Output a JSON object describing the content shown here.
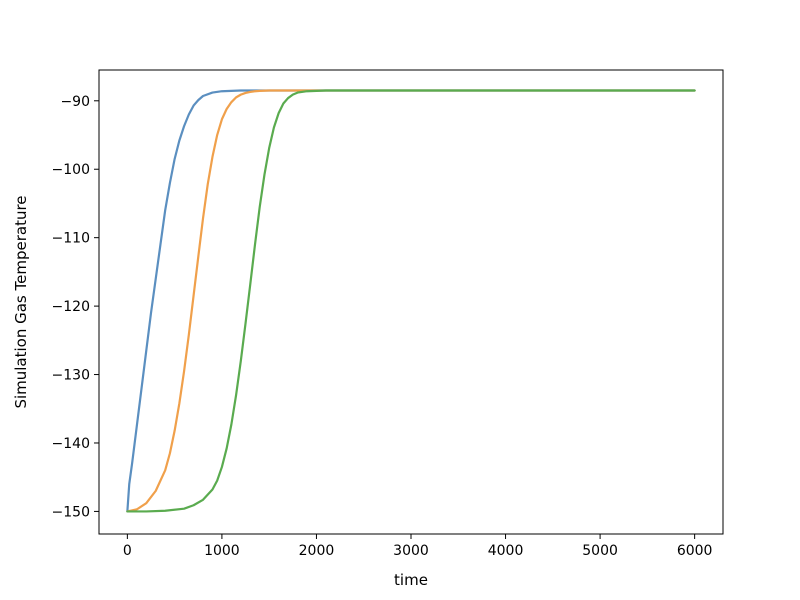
{
  "chart_data": {
    "type": "line",
    "title": "",
    "xlabel": "time",
    "ylabel": "Simulation Gas Temperature",
    "xlim": [
      -300,
      6300
    ],
    "ylim": [
      -153.3,
      -85.5
    ],
    "xticks": [
      0,
      1000,
      2000,
      3000,
      4000,
      5000,
      6000
    ],
    "xtick_labels": [
      "0",
      "1000",
      "2000",
      "3000",
      "4000",
      "5000",
      "6000"
    ],
    "yticks": [
      -150,
      -140,
      -130,
      -120,
      -110,
      -100,
      -90
    ],
    "ytick_labels": [
      "−150",
      "−140",
      "−130",
      "−120",
      "−110",
      "−100",
      "−90"
    ],
    "grid": false,
    "legend": "none",
    "series": [
      {
        "color": "#5b8fc0",
        "x": [
          0,
          20,
          50,
          100,
          150,
          200,
          250,
          300,
          350,
          400,
          450,
          500,
          550,
          600,
          650,
          700,
          750,
          800,
          900,
          1000,
          1200,
          1500,
          2000,
          3000,
          4000,
          5000,
          6000
        ],
        "y": [
          -150,
          -146,
          -143,
          -137.5,
          -132,
          -126.5,
          -121,
          -116,
          -111,
          -106,
          -102,
          -98.5,
          -95.8,
          -93.7,
          -92,
          -90.7,
          -89.9,
          -89.3,
          -88.8,
          -88.6,
          -88.5,
          -88.5,
          -88.5,
          -88.5,
          -88.5,
          -88.5,
          -88.5
        ]
      },
      {
        "color": "#f0a04b",
        "x": [
          0,
          100,
          200,
          300,
          400,
          450,
          500,
          550,
          600,
          650,
          700,
          750,
          800,
          850,
          900,
          950,
          1000,
          1050,
          1100,
          1150,
          1200,
          1250,
          1300,
          1350,
          1400,
          1500,
          1600,
          1800,
          2000,
          3000,
          4000,
          5000,
          6000
        ],
        "y": [
          -150,
          -149.7,
          -148.8,
          -147,
          -144,
          -141.5,
          -138.2,
          -134.2,
          -129.5,
          -124.2,
          -118.5,
          -112.8,
          -107.2,
          -102.2,
          -98.2,
          -95,
          -92.7,
          -91.2,
          -90.2,
          -89.5,
          -89.1,
          -88.85,
          -88.7,
          -88.6,
          -88.55,
          -88.5,
          -88.5,
          -88.5,
          -88.5,
          -88.5,
          -88.5,
          -88.5,
          -88.5
        ]
      },
      {
        "color": "#5aab4f",
        "x": [
          0,
          200,
          400,
          600,
          700,
          800,
          900,
          950,
          1000,
          1050,
          1100,
          1150,
          1200,
          1250,
          1300,
          1350,
          1400,
          1450,
          1500,
          1550,
          1600,
          1650,
          1700,
          1750,
          1800,
          1900,
          2000,
          2100,
          2200,
          2400,
          3000,
          4000,
          5000,
          6000
        ],
        "y": [
          -150,
          -150,
          -149.9,
          -149.6,
          -149.1,
          -148.3,
          -146.8,
          -145.5,
          -143.5,
          -140.8,
          -137.3,
          -133,
          -128,
          -122.5,
          -116.8,
          -111,
          -105.5,
          -100.8,
          -96.9,
          -93.9,
          -91.8,
          -90.4,
          -89.6,
          -89.1,
          -88.8,
          -88.6,
          -88.55,
          -88.5,
          -88.5,
          -88.5,
          -88.5,
          -88.5,
          -88.5,
          -88.5
        ]
      }
    ]
  }
}
